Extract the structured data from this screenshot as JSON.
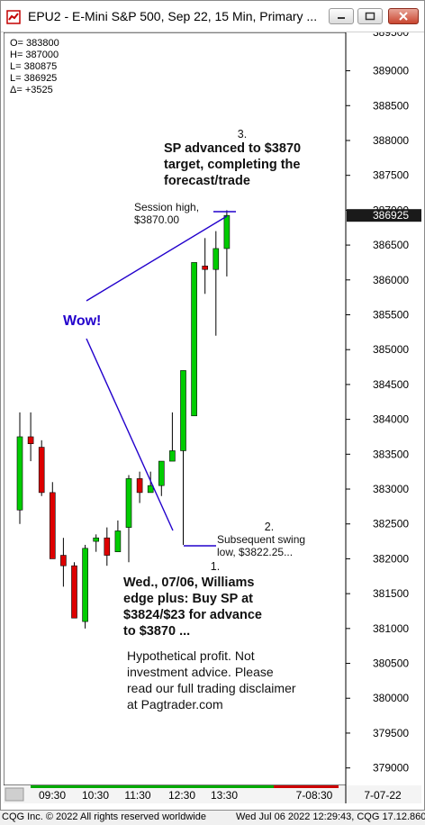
{
  "window": {
    "title": "EPU2 - E-Mini S&P 500, Sep 22, 15 Min, Primary ...",
    "app_icon": "cqg-app-icon",
    "buttons": [
      "minimize-icon",
      "maximize-icon",
      "close-icon"
    ]
  },
  "ohlc_box": {
    "lines": [
      "O=  383800",
      "H=  387000",
      "L=  380875",
      "L=  386925",
      "Δ=    +3525"
    ]
  },
  "annotations": {
    "label3_num": "3.",
    "label3_lines": [
      "SP advanced to $3870",
      "target, completing the",
      "forecast/trade"
    ],
    "session_high_lines": [
      "Session high,",
      "$3870.00"
    ],
    "wow": "Wow!",
    "label2_num": "2.",
    "label2_lines": [
      "Subsequent swing",
      "low, $3822.25..."
    ],
    "label1_num": "1.",
    "label1_lines": [
      "Wed., 07/06, Williams",
      "edge plus: Buy SP at",
      "$3824/$23 for advance",
      "to $3870 ..."
    ],
    "disclaimer_lines": [
      "Hypothetical profit. Not",
      "investment advice. Please",
      "read our full trading disclaimer",
      "at Pagtrader.com"
    ]
  },
  "time_axis": {
    "labels": [
      "09:30",
      "10:30",
      "11:30",
      "12:30",
      "13:30"
    ],
    "date_label": "7-08:30",
    "corner_label": "7-07-22"
  },
  "price_axis": {
    "top_label": "389500",
    "current_price": "386925"
  },
  "footer": {
    "left": "CQG Inc. © 2022 All rights reserved worldwide",
    "right": "Wed Jul 06 2022 12:29:43, CQG 17.12.860"
  },
  "colors": {
    "up": "#00cc00",
    "down": "#dd0000",
    "annotation_line": "#2200cc",
    "wow_text": "#2200cc",
    "session_bar": "#00aa00"
  },
  "chart_data": {
    "type": "candlestick",
    "ylim": [
      378750,
      389550
    ],
    "yticks": [
      379000,
      379500,
      380000,
      380500,
      381000,
      381500,
      382000,
      382500,
      383000,
      383500,
      384000,
      384500,
      385000,
      385500,
      386000,
      386500,
      387000,
      387500,
      388000,
      388500,
      389000
    ],
    "candles": [
      {
        "o": 382700,
        "h": 384100,
        "l": 382500,
        "c": 383750
      },
      {
        "o": 383750,
        "h": 384100,
        "l": 383400,
        "c": 383650
      },
      {
        "o": 383600,
        "h": 383700,
        "l": 382900,
        "c": 382950
      },
      {
        "o": 382950,
        "h": 383100,
        "l": 382000,
        "c": 382000
      },
      {
        "o": 382050,
        "h": 382300,
        "l": 381600,
        "c": 381900
      },
      {
        "o": 381900,
        "h": 381950,
        "l": 381250,
        "c": 381150
      },
      {
        "o": 381100,
        "h": 382200,
        "l": 381000,
        "c": 382150
      },
      {
        "o": 382250,
        "h": 382350,
        "l": 382100,
        "c": 382300
      },
      {
        "o": 382300,
        "h": 382450,
        "l": 381900,
        "c": 382050
      },
      {
        "o": 382100,
        "h": 382550,
        "l": 382100,
        "c": 382400
      },
      {
        "o": 382450,
        "h": 383200,
        "l": 381950,
        "c": 383150
      },
      {
        "o": 383150,
        "h": 383250,
        "l": 382800,
        "c": 382950
      },
      {
        "o": 382950,
        "h": 383250,
        "l": 382950,
        "c": 383050
      },
      {
        "o": 383050,
        "h": 383400,
        "l": 382900,
        "c": 383400
      },
      {
        "o": 383400,
        "h": 384100,
        "l": 383450,
        "c": 383550
      },
      {
        "o": 383550,
        "h": 384700,
        "l": 382200,
        "c": 384700
      },
      {
        "o": 384050,
        "h": 386250,
        "l": 384150,
        "c": 386250
      },
      {
        "o": 386200,
        "h": 386600,
        "l": 385800,
        "c": 386150
      },
      {
        "o": 386150,
        "h": 386700,
        "l": 385200,
        "c": 386450
      },
      {
        "o": 386450,
        "h": 387000,
        "l": 386050,
        "c": 386925
      }
    ]
  }
}
